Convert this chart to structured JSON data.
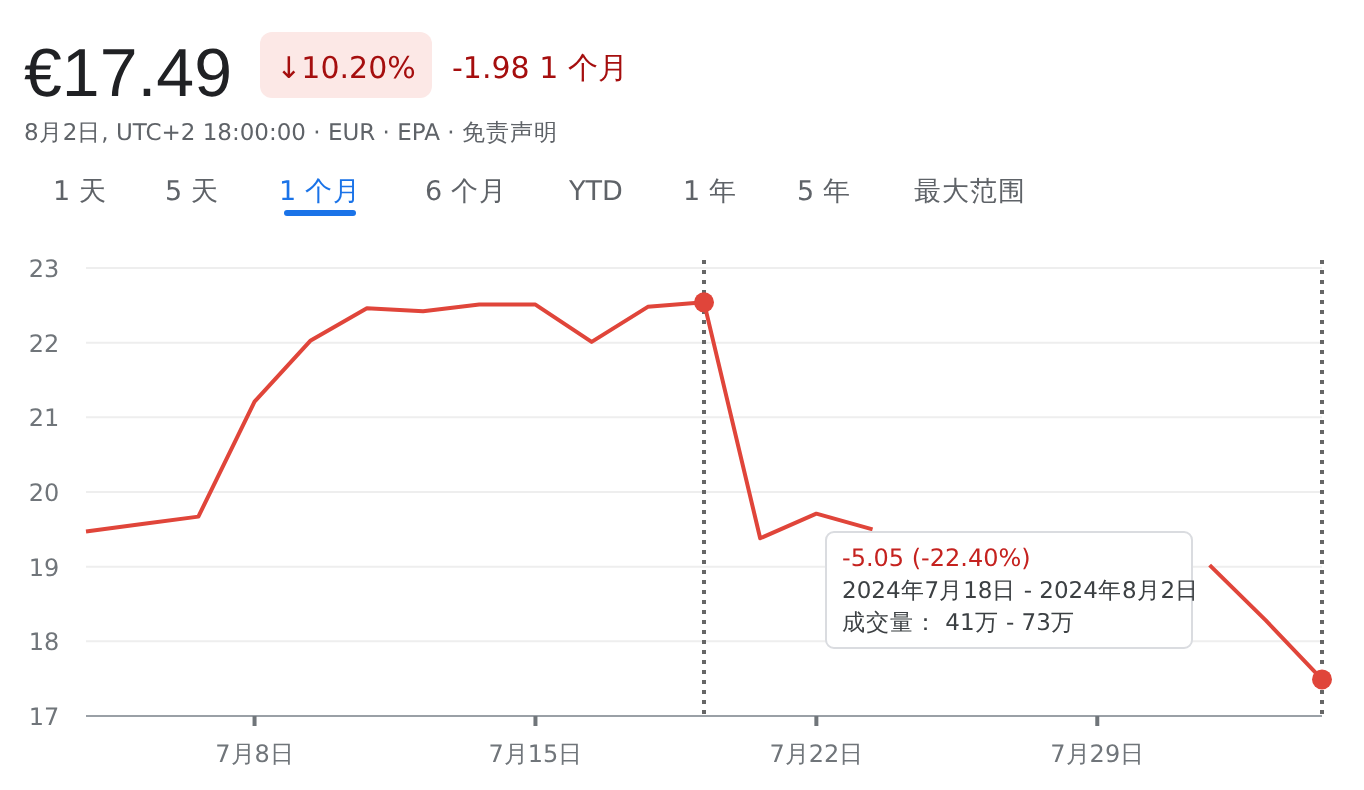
{
  "chart_data": {
    "type": "line",
    "title": "€17.49",
    "subtitle": "8月2日, UTC+2 18:00:00 · EUR · EPA · 免责声明",
    "annotations": [
      "↓10.20%",
      "-1.98 1 个月",
      "1 天",
      "5 天",
      "1 个月",
      "6 个月",
      "YTD",
      "1 年",
      "5 年",
      "最大范围",
      "-5.05 (-22.40%)",
      "2024年7月18日 - 2024年8月2日",
      "成交量： 41万 - 73万"
    ],
    "categories": [
      null,
      null,
      null,
      "7月8日",
      null,
      null,
      null,
      null,
      "7月15日",
      null,
      null,
      null,
      null,
      "7月22日",
      null,
      null,
      null,
      null,
      "7月29日",
      null,
      null,
      null,
      null
    ],
    "series": [
      {
        "type": "line",
        "color": "#e0453a",
        "values": [
          19.47,
          19.57,
          19.67,
          21.21,
          22.03,
          22.46,
          22.42,
          22.51,
          22.51,
          22.01,
          22.48,
          22.54,
          19.38,
          19.71,
          19.5,
          null,
          null,
          null,
          null,
          null,
          19.02,
          18.28,
          17.49
        ]
      },
      {
        "type": "scatter",
        "color": "#e0453a",
        "marker": "circle",
        "values": [
          null,
          null,
          null,
          null,
          null,
          null,
          null,
          null,
          null,
          null,
          null,
          22.54,
          null,
          null,
          null,
          null,
          null,
          null,
          null,
          null,
          null,
          null,
          17.49
        ]
      }
    ],
    "ylim": [
      17,
      23
    ],
    "yticks": [
      17,
      18,
      19,
      20,
      21,
      22,
      23
    ],
    "grid": "y",
    "line_style": "solid"
  }
}
